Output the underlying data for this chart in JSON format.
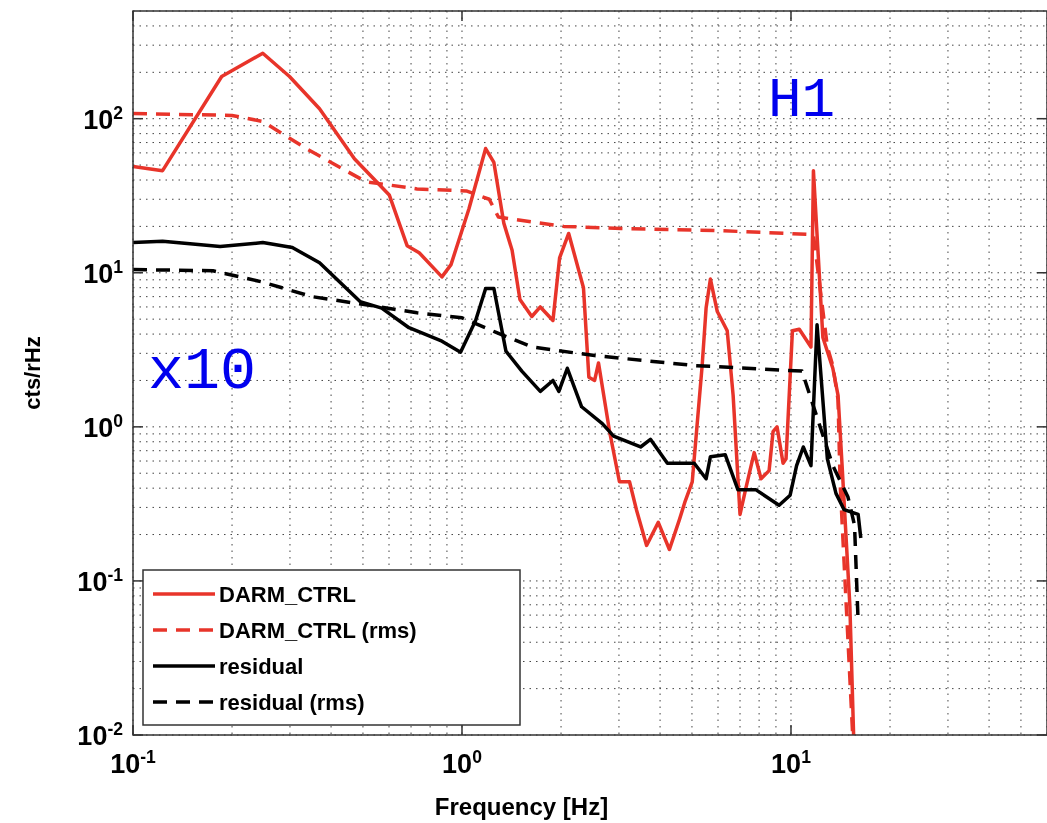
{
  "chart_data": {
    "type": "line",
    "xlabel": "Frequency [Hz]",
    "ylabel": "cts/rHz",
    "log": "xy",
    "grid": true,
    "legend": "bottom left",
    "xlim": [
      0.1,
      60
    ],
    "ylim": [
      0.01,
      500
    ],
    "xticks": [
      {
        "value": 0.1,
        "label": "10$^{-1}$"
      },
      {
        "value": 1,
        "label": "10$^{0}$"
      },
      {
        "value": 10,
        "label": "10$^{1}$"
      }
    ],
    "yticks": [
      {
        "value": 0.01,
        "label": "10$^{-2}$"
      },
      {
        "value": 0.1,
        "label": "10$^{-1}$"
      },
      {
        "value": 1,
        "label": "10$^{0}$"
      },
      {
        "value": 10,
        "label": "10$^{1}$"
      },
      {
        "value": 100,
        "label": "10$^{2}$"
      }
    ],
    "annotations": [
      "H1",
      "x10"
    ],
    "series": [
      {
        "name": "DARM_CTRL",
        "color": "#e8342a",
        "line_style": "solid",
        "x": [
          0.1,
          0.123,
          0.186,
          0.248,
          0.299,
          0.369,
          0.471,
          0.601,
          0.681,
          0.741,
          0.869,
          0.926,
          1.05,
          1.18,
          1.25,
          1.34,
          1.42,
          1.5,
          1.63,
          1.73,
          1.89,
          1.98,
          2.11,
          2.34,
          2.43,
          2.53,
          2.6,
          2.81,
          3.01,
          3.23,
          3.39,
          3.64,
          3.95,
          4.27,
          4.58,
          4.77,
          5.01,
          5.37,
          5.52,
          5.69,
          5.97,
          6.4,
          6.67,
          7.0,
          7.31,
          7.73,
          8.11,
          8.58,
          8.82,
          9.07,
          9.46,
          9.66,
          10.1,
          10.6,
          11.5,
          11.7,
          12.5,
          13.4,
          13.9,
          14.3,
          15.1,
          15.5
        ],
        "values": [
          49,
          46,
          188,
          266,
          188,
          116,
          55,
          32,
          15,
          13.5,
          9.4,
          11.3,
          26,
          64,
          52,
          21,
          14,
          6.7,
          5.2,
          6.0,
          4.9,
          12.5,
          18,
          8.0,
          2.1,
          2.0,
          2.6,
          0.93,
          0.44,
          0.44,
          0.29,
          0.17,
          0.24,
          0.16,
          0.25,
          0.33,
          0.44,
          2.5,
          5.9,
          9.1,
          5.6,
          4.2,
          1.6,
          0.27,
          0.41,
          0.68,
          0.46,
          0.52,
          0.93,
          1.0,
          0.58,
          0.62,
          4.2,
          4.3,
          3.3,
          46,
          3.8,
          2.4,
          1.6,
          0.56,
          0.069,
          0.01
        ]
      },
      {
        "name": "DARM_CTRL (rms)",
        "color": "#e8342a",
        "line_style": "dashed",
        "x": [
          0.1,
          0.2,
          0.248,
          0.336,
          0.51,
          0.73,
          1.03,
          1.21,
          1.29,
          2.04,
          3.05,
          5.97,
          11.7,
          12.9,
          13.4,
          13.9,
          14.1,
          15.4
        ],
        "values": [
          108,
          105,
          96,
          64,
          39,
          35,
          34,
          30,
          23,
          20,
          19.4,
          18.8,
          17.7,
          3.3,
          2.5,
          1.5,
          0.44,
          0.01
        ]
      },
      {
        "name": "residual",
        "color": "#000000",
        "line_style": "solid",
        "x": [
          0.1,
          0.123,
          0.184,
          0.248,
          0.305,
          0.369,
          0.49,
          0.57,
          0.69,
          0.869,
          0.99,
          1.1,
          1.18,
          1.25,
          1.36,
          1.52,
          1.73,
          1.89,
          1.97,
          2.09,
          2.31,
          2.67,
          2.89,
          3.49,
          3.74,
          4.21,
          5.08,
          5.52,
          5.69,
          6.31,
          6.9,
          7.83,
          9.2,
          9.94,
          10.4,
          10.9,
          11.5,
          12.0,
          12.9,
          13.7,
          14.5,
          16.0,
          16.3
        ],
        "values": [
          15.7,
          16,
          14.8,
          15.7,
          14.6,
          11.6,
          6.5,
          5.9,
          4.4,
          3.6,
          3.05,
          4.9,
          7.9,
          7.9,
          3.1,
          2.3,
          1.7,
          2.0,
          1.7,
          2.4,
          1.35,
          1.05,
          0.87,
          0.74,
          0.83,
          0.58,
          0.58,
          0.46,
          0.64,
          0.66,
          0.39,
          0.39,
          0.31,
          0.36,
          0.56,
          0.74,
          0.56,
          4.6,
          0.62,
          0.37,
          0.29,
          0.27,
          0.19
        ]
      },
      {
        "name": "residual (rms)",
        "color": "#000000",
        "line_style": "dashed",
        "x": [
          0.1,
          0.175,
          0.248,
          0.35,
          0.51,
          0.73,
          1.0,
          1.27,
          1.63,
          2.53,
          5.08,
          10.8,
          13.4,
          14.9,
          15.6,
          16.0
        ],
        "values": [
          10.5,
          10.3,
          8.7,
          7.0,
          6.2,
          5.5,
          5.1,
          4.1,
          3.3,
          2.9,
          2.5,
          2.3,
          0.56,
          0.35,
          0.23,
          0.054
        ]
      }
    ]
  }
}
